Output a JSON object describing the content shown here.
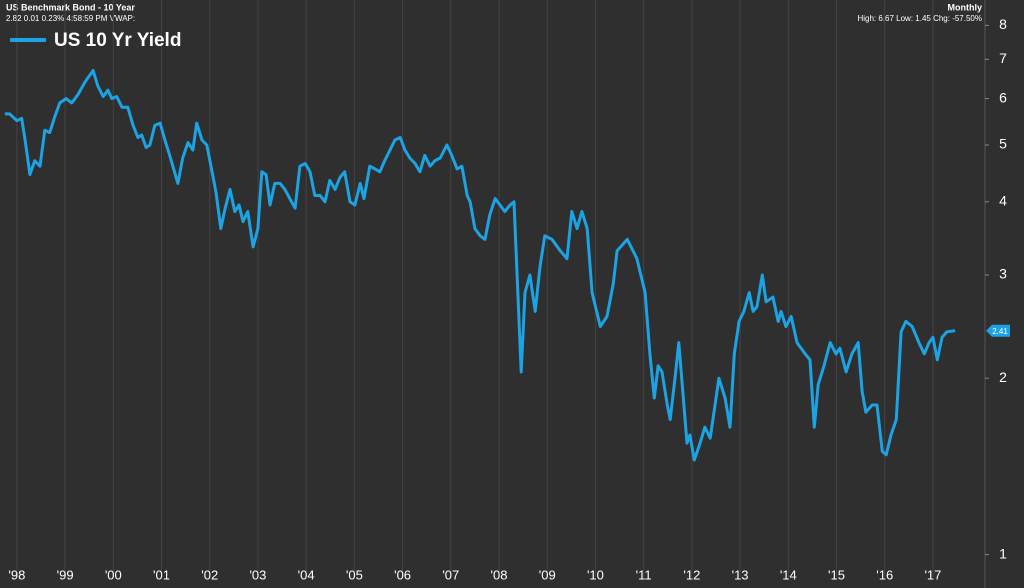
{
  "chart_data": {
    "type": "line",
    "title": "US Benchmark Bond - 10 Year",
    "subtitle": "2.82 0.01 0.23% 4:58:59 PM VWAP:",
    "period": "Monthly",
    "stats": "High: 6.67 Low: 1.45 Chg: -57.50%",
    "last_value": 2.41,
    "log_scale": true,
    "grid": "x",
    "background": "#2f2f2f",
    "xlim": [
      1997.65,
      2018.08
    ],
    "ylim": [
      0.96,
      8.3
    ],
    "yticks": [
      1,
      2,
      3,
      4,
      5,
      6,
      7,
      8
    ],
    "xticks": [
      {
        "value": 1998,
        "label": "'98"
      },
      {
        "value": 1999,
        "label": "'99"
      },
      {
        "value": 2000,
        "label": "'00"
      },
      {
        "value": 2001,
        "label": "'01"
      },
      {
        "value": 2002,
        "label": "'02"
      },
      {
        "value": 2003,
        "label": "'03"
      },
      {
        "value": 2004,
        "label": "'04"
      },
      {
        "value": 2005,
        "label": "'05"
      },
      {
        "value": 2006,
        "label": "'06"
      },
      {
        "value": 2007,
        "label": "'07"
      },
      {
        "value": 2008,
        "label": "'08"
      },
      {
        "value": 2009,
        "label": "'09"
      },
      {
        "value": 2010,
        "label": "'10"
      },
      {
        "value": 2011,
        "label": "'11"
      },
      {
        "value": 2012,
        "label": "'12"
      },
      {
        "value": 2013,
        "label": "'13"
      },
      {
        "value": 2014,
        "label": "'14"
      },
      {
        "value": 2015,
        "label": "'15"
      },
      {
        "value": 2016,
        "label": "'16"
      },
      {
        "value": 2017,
        "label": "'17"
      }
    ],
    "x": [
      1997.75,
      1997.85,
      1998.0,
      1998.1,
      1998.17,
      1998.27,
      1998.37,
      1998.48,
      1998.58,
      1998.68,
      1998.79,
      1998.89,
      1999.02,
      1999.14,
      1999.27,
      1999.41,
      1999.58,
      1999.68,
      1999.79,
      1999.89,
      1999.97,
      2000.07,
      2000.18,
      2000.3,
      2000.41,
      2000.51,
      2000.59,
      2000.68,
      2000.76,
      2000.86,
      2000.97,
      2001.07,
      2001.17,
      2001.34,
      2001.44,
      2001.55,
      2001.65,
      2001.73,
      2001.84,
      2001.94,
      2002.05,
      2002.13,
      2002.23,
      2002.32,
      2002.42,
      2002.52,
      2002.61,
      2002.69,
      2002.79,
      2002.9,
      2003.0,
      2003.08,
      2003.17,
      2003.25,
      2003.35,
      2003.46,
      2003.56,
      2003.66,
      2003.77,
      2003.87,
      2003.98,
      2004.08,
      2004.18,
      2004.29,
      2004.39,
      2004.49,
      2004.6,
      2004.7,
      2004.8,
      2004.91,
      2005.01,
      2005.12,
      2005.2,
      2005.32,
      2005.43,
      2005.53,
      2005.63,
      2005.74,
      2005.84,
      2005.95,
      2006.05,
      2006.15,
      2006.26,
      2006.36,
      2006.46,
      2006.57,
      2006.67,
      2006.78,
      2006.92,
      2007.02,
      2007.13,
      2007.23,
      2007.34,
      2007.4,
      2007.5,
      2007.61,
      2007.71,
      2007.81,
      2007.92,
      2008.02,
      2008.12,
      2008.23,
      2008.31,
      2008.46,
      2008.54,
      2008.64,
      2008.75,
      2008.85,
      2008.95,
      2009.1,
      2009.27,
      2009.41,
      2009.51,
      2009.62,
      2009.72,
      2009.83,
      2009.93,
      2010.1,
      2010.24,
      2010.37,
      2010.45,
      2010.66,
      2010.86,
      2011.03,
      2011.13,
      2011.22,
      2011.3,
      2011.38,
      2011.49,
      2011.55,
      2011.65,
      2011.73,
      2011.9,
      2011.96,
      2012.05,
      2012.17,
      2012.27,
      2012.38,
      2012.46,
      2012.56,
      2012.69,
      2012.79,
      2012.88,
      2012.98,
      2013.08,
      2013.19,
      2013.27,
      2013.35,
      2013.46,
      2013.54,
      2013.68,
      2013.79,
      2013.85,
      2013.95,
      2014.06,
      2014.18,
      2014.35,
      2014.45,
      2014.54,
      2014.62,
      2014.74,
      2014.87,
      2014.99,
      2015.07,
      2015.2,
      2015.32,
      2015.45,
      2015.53,
      2015.61,
      2015.74,
      2015.84,
      2015.95,
      2016.03,
      2016.13,
      2016.24,
      2016.34,
      2016.44,
      2016.57,
      2016.71,
      2016.82,
      2016.92,
      2017.0,
      2017.09,
      2017.19,
      2017.29,
      2017.46
    ],
    "series": [
      {
        "name": "US 10 Yr Yield",
        "color": "#1ba3e3",
        "values": [
          5.65,
          5.65,
          5.5,
          5.55,
          5.1,
          4.45,
          4.7,
          4.6,
          5.3,
          5.25,
          5.6,
          5.9,
          6.0,
          5.9,
          6.1,
          6.4,
          6.7,
          6.3,
          6.05,
          6.2,
          6.0,
          6.05,
          5.8,
          5.8,
          5.4,
          5.15,
          5.2,
          4.95,
          5.0,
          5.4,
          5.45,
          5.1,
          4.8,
          4.3,
          4.75,
          5.05,
          4.9,
          5.45,
          5.1,
          5.0,
          4.5,
          4.15,
          3.6,
          3.9,
          4.2,
          3.85,
          3.95,
          3.7,
          3.85,
          3.35,
          3.6,
          4.5,
          4.45,
          3.95,
          4.3,
          4.3,
          4.2,
          4.05,
          3.9,
          4.6,
          4.65,
          4.5,
          4.1,
          4.1,
          4.0,
          4.35,
          4.2,
          4.4,
          4.5,
          4.0,
          3.95,
          4.3,
          4.05,
          4.6,
          4.55,
          4.5,
          4.7,
          4.9,
          5.1,
          5.15,
          4.9,
          4.75,
          4.65,
          4.5,
          4.8,
          4.6,
          4.7,
          4.75,
          5.0,
          4.8,
          4.55,
          4.6,
          4.1,
          4.0,
          3.6,
          3.5,
          3.45,
          3.8,
          4.05,
          3.95,
          3.85,
          3.95,
          4.0,
          2.05,
          2.8,
          3.0,
          2.6,
          3.1,
          3.5,
          3.45,
          3.3,
          3.2,
          3.85,
          3.6,
          3.85,
          3.6,
          2.8,
          2.45,
          2.55,
          2.9,
          3.3,
          3.45,
          3.2,
          2.8,
          2.2,
          1.85,
          2.1,
          2.05,
          1.8,
          1.7,
          2.0,
          2.3,
          1.55,
          1.6,
          1.45,
          1.55,
          1.65,
          1.58,
          1.75,
          2.0,
          1.85,
          1.65,
          2.2,
          2.5,
          2.6,
          2.8,
          2.6,
          2.65,
          3.0,
          2.7,
          2.75,
          2.5,
          2.6,
          2.45,
          2.55,
          2.3,
          2.2,
          2.15,
          1.65,
          1.95,
          2.1,
          2.3,
          2.2,
          2.25,
          2.05,
          2.2,
          2.3,
          1.9,
          1.75,
          1.8,
          1.8,
          1.5,
          1.48,
          1.6,
          1.7,
          2.4,
          2.5,
          2.45,
          2.3,
          2.2,
          2.3,
          2.35,
          2.15,
          2.35,
          2.4,
          2.41
        ]
      }
    ]
  }
}
